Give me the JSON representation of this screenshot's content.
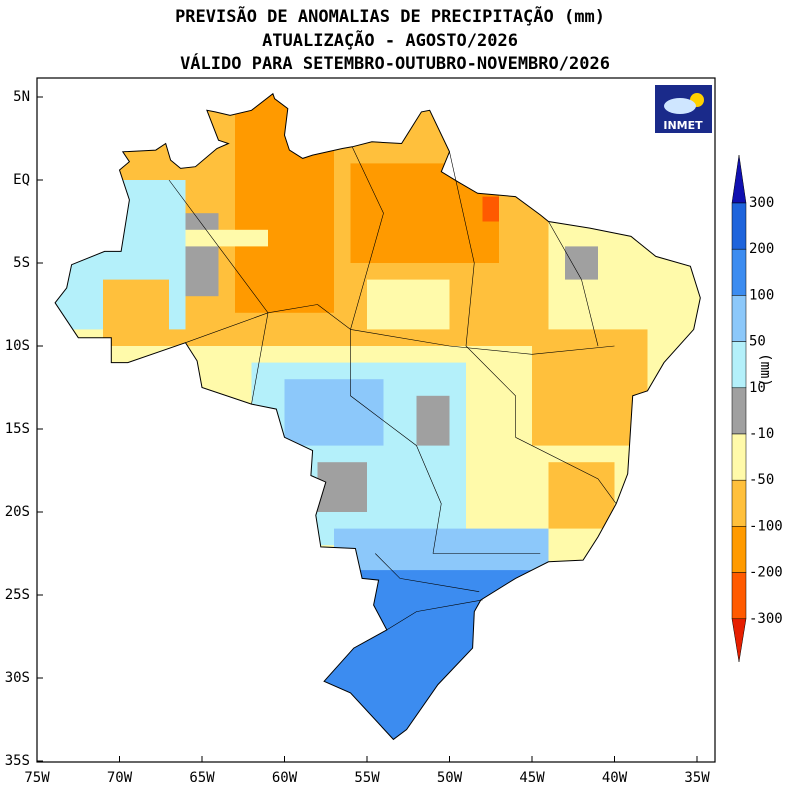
{
  "title_lines": [
    "PREVISÃO DE ANOMALIAS DE PRECIPITAÇÃO (mm)",
    "ATUALIZAÇÃO - AGOSTO/2026",
    "VÁLIDO PARA SETEMBRO-OUTUBRO-NOVEMBRO/2026"
  ],
  "map": {
    "lon_ticks": [
      {
        "value": -75,
        "label": "75W"
      },
      {
        "value": -70,
        "label": "70W"
      },
      {
        "value": -65,
        "label": "65W"
      },
      {
        "value": -60,
        "label": "60W"
      },
      {
        "value": -55,
        "label": "55W"
      },
      {
        "value": -50,
        "label": "50W"
      },
      {
        "value": -45,
        "label": "45W"
      },
      {
        "value": -40,
        "label": "40W"
      },
      {
        "value": -35,
        "label": "35W"
      }
    ],
    "lat_ticks": [
      {
        "value": 5,
        "label": "5N"
      },
      {
        "value": 0,
        "label": "EQ"
      },
      {
        "value": -5,
        "label": "5S"
      },
      {
        "value": -10,
        "label": "10S"
      },
      {
        "value": -15,
        "label": "15S"
      },
      {
        "value": -20,
        "label": "20S"
      },
      {
        "value": -25,
        "label": "25S"
      },
      {
        "value": -30,
        "label": "30S"
      },
      {
        "value": -35,
        "label": "35S"
      }
    ]
  },
  "colorbar": {
    "unit": "(mm)",
    "levels": [
      300,
      200,
      100,
      50,
      10,
      -10,
      -50,
      -100,
      -200,
      -300
    ],
    "colors": [
      "#1010b0",
      "#1e64dc",
      "#3c8cf0",
      "#8cc8fa",
      "#b4f0fa",
      "#a0a0a0",
      "#fffaaa",
      "#ffc03c",
      "#ff9a00",
      "#ff5a00",
      "#e61e00"
    ]
  },
  "logo": "INMET"
}
